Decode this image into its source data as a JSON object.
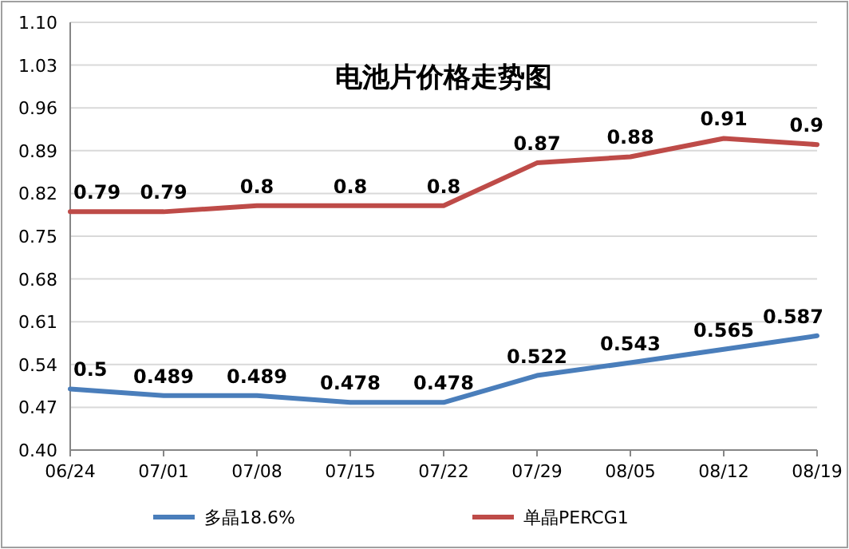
{
  "chart_data": {
    "type": "line",
    "title": "电池片价格走势图",
    "categories": [
      "06/24",
      "07/01",
      "07/08",
      "07/15",
      "07/22",
      "07/29",
      "08/05",
      "08/12",
      "08/19"
    ],
    "series": [
      {
        "name": "多晶18.6%",
        "color": "#4a7ebb",
        "values": [
          0.5,
          0.489,
          0.489,
          0.478,
          0.478,
          0.522,
          0.543,
          0.565,
          0.587
        ]
      },
      {
        "name": "单晶PERCG1",
        "color": "#be4b48",
        "values": [
          0.79,
          0.79,
          0.8,
          0.8,
          0.8,
          0.87,
          0.88,
          0.91,
          0.9
        ]
      }
    ],
    "ylim": [
      0.4,
      1.1
    ],
    "yticks": [
      {
        "value": 0.4,
        "label": "0.40"
      },
      0.47,
      0.54,
      0.61,
      0.68,
      0.75,
      0.82,
      0.89,
      0.96,
      1.03,
      {
        "value": 1.1,
        "label": "1.10"
      }
    ],
    "grid": "y",
    "legend": "bottom",
    "data_labels": true,
    "marker": "none",
    "line_style": "solid"
  }
}
